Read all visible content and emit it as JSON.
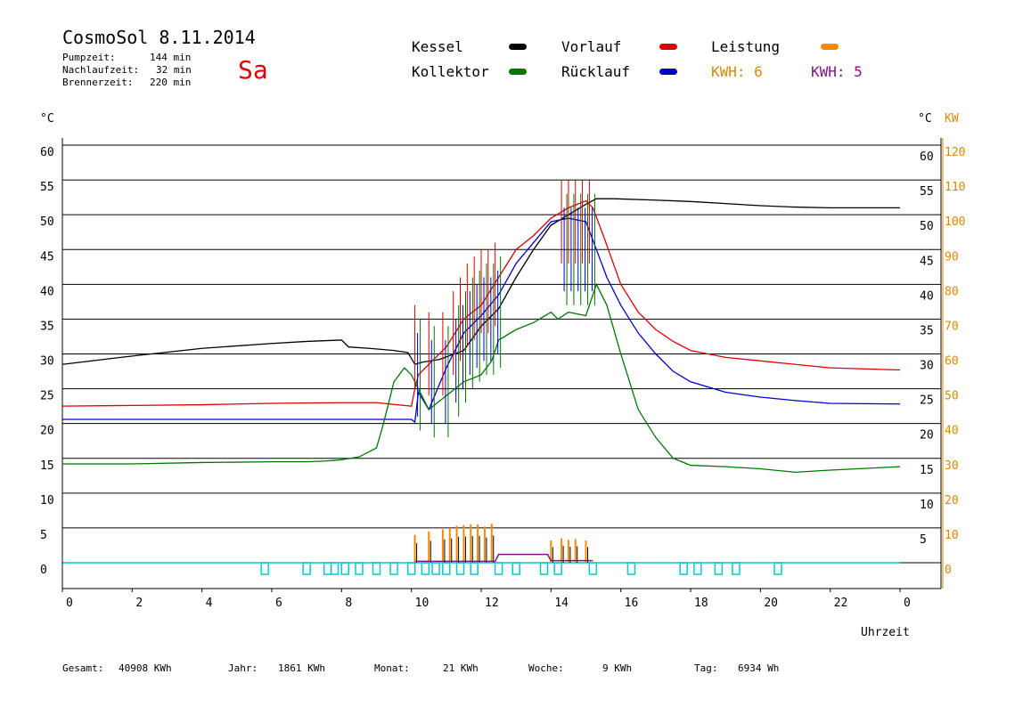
{
  "header": {
    "title": "CosmoSol 8.11.2014",
    "day": "Sa",
    "pump_label": "Pumpzeit:",
    "pump_value": "144 min",
    "nach_label": "Nachlaufzeit:",
    "nach_value": "32 min",
    "brenner_label": "Brennerzeit:",
    "brenner_value": "220 min"
  },
  "legend": {
    "kessel": "Kessel",
    "vorlauf": "Vorlauf",
    "leistung": "Leistung",
    "kollektor": "Kollektor",
    "ruecklauf": "Rücklauf",
    "kwh1": "KWH: 6",
    "kwh2": "KWH: 5"
  },
  "footer": {
    "gesamt_label": "Gesamt:",
    "gesamt_value": "40908 KWh",
    "jahr_label": "Jahr:",
    "jahr_value": "1861 KWh",
    "monat_label": "Monat:",
    "monat_value": "21 KWh",
    "woche_label": "Woche:",
    "woche_value": "9 KWh",
    "tag_label": "Tag:",
    "tag_value": "6934 Wh"
  },
  "chart_data": {
    "type": "line",
    "x_label": "Uhrzeit",
    "y_label_left": "°C",
    "y_label_right_1": "°C",
    "y_label_right_2": "KW",
    "x_ticks": [
      "0",
      "2",
      "4",
      "6",
      "8",
      "10",
      "12",
      "14",
      "16",
      "18",
      "20",
      "22",
      "0"
    ],
    "y_left_ticks": [
      "0",
      "5",
      "10",
      "15",
      "20",
      "25",
      "30",
      "35",
      "40",
      "45",
      "50",
      "55",
      "60"
    ],
    "y_right_ticks": [
      "5",
      "10",
      "15",
      "20",
      "25",
      "30",
      "35",
      "40",
      "45",
      "50",
      "55",
      "60"
    ],
    "y_kw_ticks": [
      "0",
      "10",
      "20",
      "30",
      "40",
      "50",
      "60",
      "70",
      "80",
      "90",
      "100",
      "110",
      "120"
    ],
    "xlim": [
      0,
      24
    ],
    "ylim": [
      0,
      60
    ],
    "colors": {
      "kessel": "#000000",
      "vorlauf": "#dd0000",
      "ruecklauf": "#0000cc",
      "kollektor": "#007700",
      "leistung": "#ff8800",
      "kwh2": "#881188",
      "pump": "#00cccc",
      "kw_axis": "#dd8800"
    },
    "series": [
      {
        "name": "Kessel",
        "key": "kessel",
        "x": [
          0,
          2,
          4,
          6,
          7,
          8,
          8.2,
          8.8,
          9.5,
          9.9,
          10.1,
          10.3,
          10.8,
          11.5,
          12,
          12.5,
          13,
          13.5,
          14,
          14.5,
          15,
          15.3,
          15.8,
          17,
          18,
          19,
          20,
          21,
          22,
          24
        ],
        "y": [
          28.5,
          29.7,
          30.8,
          31.5,
          31.8,
          32,
          31,
          30.8,
          30.5,
          30.2,
          28.5,
          28.8,
          29.2,
          30.5,
          34,
          36.5,
          41,
          45,
          48.5,
          50,
          51.5,
          52.3,
          52.3,
          52.1,
          51.9,
          51.6,
          51.3,
          51.1,
          51,
          51
        ]
      },
      {
        "name": "Vorlauf",
        "key": "vorlauf",
        "x": [
          0,
          2,
          4,
          6,
          8,
          9,
          10,
          10.1,
          10.2,
          10.5,
          11,
          11.5,
          12,
          12.5,
          13,
          13.5,
          14,
          14.5,
          15,
          15.2,
          15.5,
          16,
          16.5,
          17,
          17.5,
          18,
          19,
          20,
          21,
          22,
          24
        ],
        "y": [
          22.5,
          22.6,
          22.7,
          22.9,
          23,
          23,
          22.5,
          25,
          27,
          28.5,
          31,
          35,
          37,
          41,
          45,
          47,
          49.5,
          51,
          52,
          51,
          47,
          40,
          36,
          33.5,
          31.8,
          30.5,
          29.5,
          29,
          28.5,
          28,
          27.7
        ]
      },
      {
        "name": "Rücklauf",
        "key": "ruecklauf",
        "x": [
          0,
          2,
          4,
          6,
          8,
          9,
          10,
          10.1,
          10.2,
          10.5,
          11,
          11.5,
          12,
          12.5,
          13,
          13.5,
          14,
          14.5,
          15,
          15.3,
          15.6,
          16,
          16.5,
          17,
          17.5,
          18,
          19,
          20,
          21,
          22,
          24
        ],
        "y": [
          20.6,
          20.6,
          20.6,
          20.6,
          20.6,
          20.6,
          20.6,
          20.2,
          24.5,
          22,
          28,
          33,
          35.5,
          38.5,
          43,
          46,
          49,
          49.5,
          49,
          45,
          41,
          37,
          33,
          30,
          27.5,
          26,
          24.5,
          23.8,
          23.3,
          22.9,
          22.8
        ]
      },
      {
        "name": "Kollektor",
        "key": "kollektor",
        "x": [
          0,
          2,
          4,
          6,
          7,
          7.5,
          8,
          8.5,
          9,
          9.2,
          9.5,
          9.8,
          10,
          10.3,
          10.5,
          11,
          11.5,
          12,
          12.3,
          12.5,
          13,
          13.5,
          14,
          14.2,
          14.5,
          15,
          15.3,
          15.6,
          16,
          16.5,
          17,
          17.5,
          18,
          19,
          20,
          21,
          22,
          24
        ],
        "y": [
          14.2,
          14.2,
          14.4,
          14.5,
          14.5,
          14.6,
          14.8,
          15.2,
          16.5,
          20,
          26,
          28,
          27,
          24,
          22,
          24,
          26,
          27,
          29,
          32,
          33.5,
          34.5,
          36,
          35,
          36,
          35.5,
          40,
          37,
          30,
          22,
          18,
          15,
          14,
          13.8,
          13.5,
          13,
          13.3,
          13.8
        ]
      }
    ],
    "spikes": [
      {
        "x": 10.1,
        "y": 37
      },
      {
        "x": 10.5,
        "y": 36
      },
      {
        "x": 10.9,
        "y": 36
      },
      {
        "x": 11.2,
        "y": 39
      },
      {
        "x": 11.4,
        "y": 41
      },
      {
        "x": 11.6,
        "y": 43
      },
      {
        "x": 11.8,
        "y": 44
      },
      {
        "x": 12.0,
        "y": 45
      },
      {
        "x": 12.2,
        "y": 45
      },
      {
        "x": 12.4,
        "y": 46
      },
      {
        "x": 14.3,
        "y": 55
      },
      {
        "x": 14.5,
        "y": 55
      },
      {
        "x": 14.7,
        "y": 55
      },
      {
        "x": 14.9,
        "y": 55
      },
      {
        "x": 15.1,
        "y": 55
      }
    ],
    "leistung_bars": [
      {
        "x": 10.1,
        "y": 4
      },
      {
        "x": 10.5,
        "y": 4.5
      },
      {
        "x": 10.9,
        "y": 4.8
      },
      {
        "x": 11.1,
        "y": 5
      },
      {
        "x": 11.3,
        "y": 5.3
      },
      {
        "x": 11.5,
        "y": 5.4
      },
      {
        "x": 11.7,
        "y": 5.5
      },
      {
        "x": 11.9,
        "y": 5.5
      },
      {
        "x": 12.1,
        "y": 5.2
      },
      {
        "x": 12.3,
        "y": 5.6
      },
      {
        "x": 14.0,
        "y": 3.2
      },
      {
        "x": 14.3,
        "y": 3.5
      },
      {
        "x": 14.5,
        "y": 3.3
      },
      {
        "x": 14.7,
        "y": 3.4
      },
      {
        "x": 15.0,
        "y": 3.2
      }
    ],
    "pump_ticks": [
      5.8,
      7,
      7.6,
      7.8,
      8.1,
      8.5,
      9,
      9.5,
      10,
      10.4,
      10.7,
      11,
      11.4,
      11.8,
      12.5,
      13,
      13.8,
      14.2,
      15.2,
      16.3,
      17.8,
      18.2,
      18.8,
      19.3,
      20.5
    ]
  }
}
